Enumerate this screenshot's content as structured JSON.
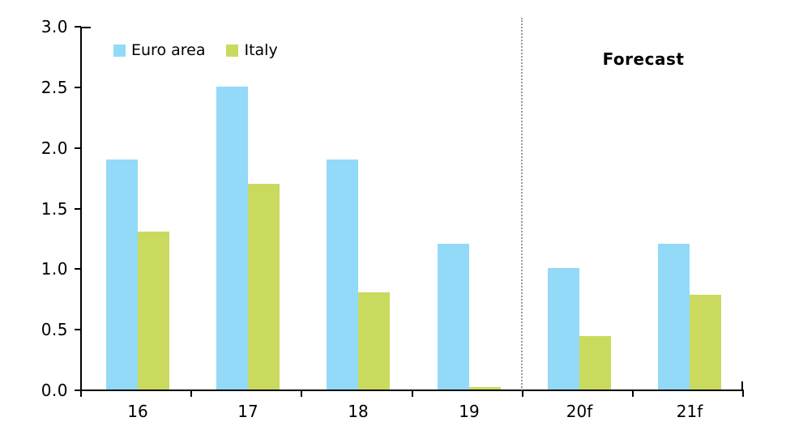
{
  "chart_data": {
    "type": "bar",
    "title": "",
    "categories": [
      "16",
      "17",
      "18",
      "19",
      "20f",
      "21f"
    ],
    "series": [
      {
        "name": "Euro area",
        "color": "#93D9F8",
        "values": [
          1.9,
          2.5,
          1.9,
          1.2,
          1.0,
          1.2
        ]
      },
      {
        "name": "Italy",
        "color": "#C9DA5E",
        "values": [
          1.3,
          1.7,
          0.8,
          0.02,
          0.44,
          0.78
        ]
      }
    ],
    "ylim": [
      0.0,
      3.0
    ],
    "ytick_step": 0.5,
    "ytick_labels": [
      "3.0",
      "2.5",
      "2.0",
      "1.5",
      "1.0",
      "0.5",
      "0.0"
    ],
    "annotation": "Forecast",
    "forecast_divider_after_category": "19",
    "legend_position": "top-left",
    "grid": false,
    "colors": {
      "axis": "#000000",
      "divider": "#9A9A9A",
      "text": "#000000",
      "background": "#FFFFFF"
    }
  }
}
